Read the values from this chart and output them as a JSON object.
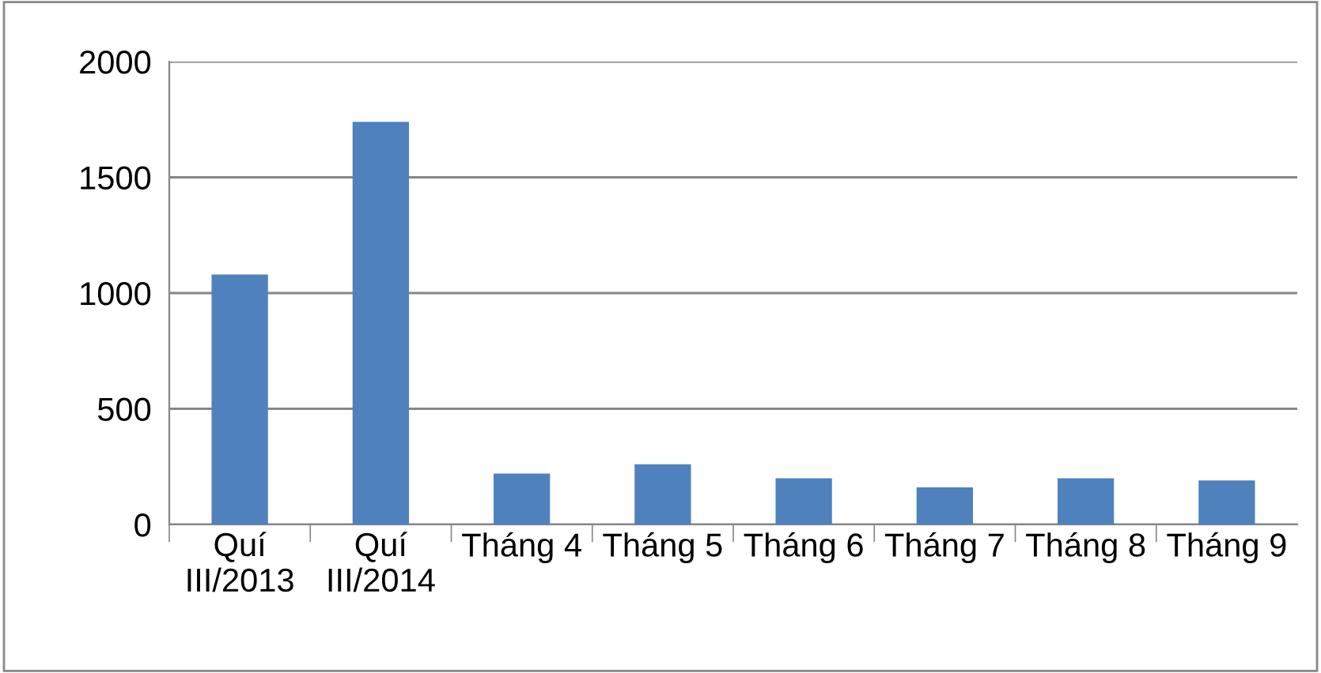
{
  "chart_data": {
    "type": "bar",
    "categories": [
      "Quí\nIII/2013",
      "Quí\nIII/2014",
      "Tháng 4",
      "Tháng 5",
      "Tháng 6",
      "Tháng 7",
      "Tháng 8",
      "Tháng 9"
    ],
    "values": [
      1080,
      1740,
      220,
      260,
      200,
      160,
      200,
      190
    ],
    "color": "#4f81bd",
    "ylim": [
      0,
      2000
    ],
    "yticks": [
      0,
      500,
      1000,
      1500,
      2000
    ],
    "grid": "y",
    "legend": false
  }
}
